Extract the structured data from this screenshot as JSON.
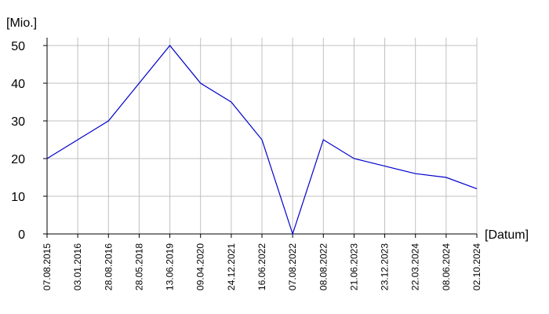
{
  "chart_data": {
    "type": "line",
    "ylabel": "[Mio.]",
    "xlabel": "[Datum]",
    "categories": [
      "07.08.2015",
      "03.01.2016",
      "28.08.2016",
      "28.05.2018",
      "13.06.2019",
      "09.04.2020",
      "24.12.2021",
      "16.06.2022",
      "07.08.2022",
      "08.08.2022",
      "21.06.2023",
      "23.12.2023",
      "22.03.2024",
      "08.06.2024",
      "02.10.2024"
    ],
    "values": [
      20,
      25,
      30,
      40,
      50,
      40,
      35,
      25,
      0,
      25,
      20,
      18,
      16,
      15,
      12
    ],
    "color": "#0000cc",
    "ylim": [
      0,
      50
    ],
    "yticks": [
      0,
      10,
      20,
      30,
      40,
      50
    ],
    "grid": true
  }
}
